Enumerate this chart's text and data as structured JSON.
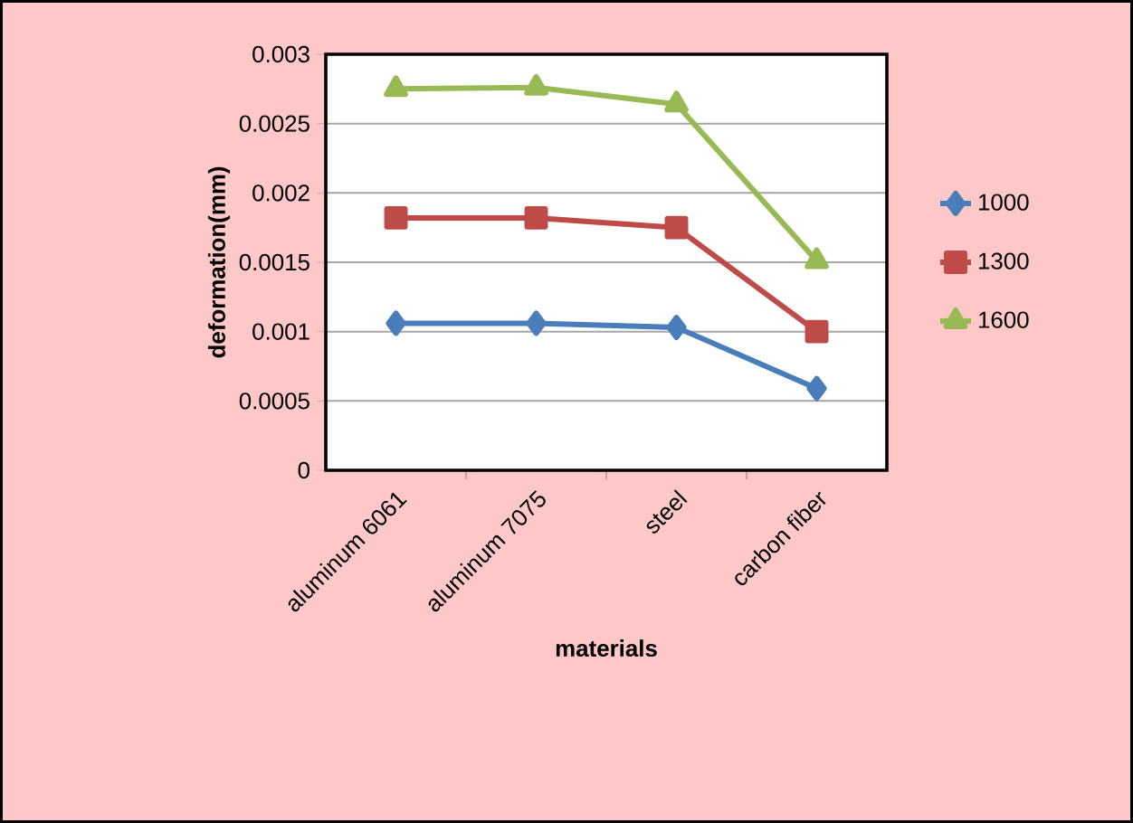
{
  "chart_data": {
    "type": "line",
    "xlabel": "materials",
    "ylabel": "deformation(mm)",
    "categories": [
      "aluminum 6061",
      "aluminum 7075",
      "steel",
      "carbon fiber"
    ],
    "series": [
      {
        "name": "1000",
        "color": "#4a7ebb",
        "marker": "diamond",
        "values": [
          0.00106,
          0.00106,
          0.00103,
          0.00059
        ]
      },
      {
        "name": "1300",
        "color": "#be4b48",
        "marker": "square",
        "values": [
          0.00182,
          0.00182,
          0.00175,
          0.001
        ]
      },
      {
        "name": "1600",
        "color": "#98b954",
        "marker": "triangle",
        "values": [
          0.00275,
          0.00276,
          0.00264,
          0.00151
        ]
      }
    ],
    "ylim": [
      0,
      0.003
    ],
    "yticks": [
      0,
      0.0005,
      0.001,
      0.0015,
      0.002,
      0.0025,
      0.003
    ],
    "grid": "y",
    "legend": "right"
  }
}
